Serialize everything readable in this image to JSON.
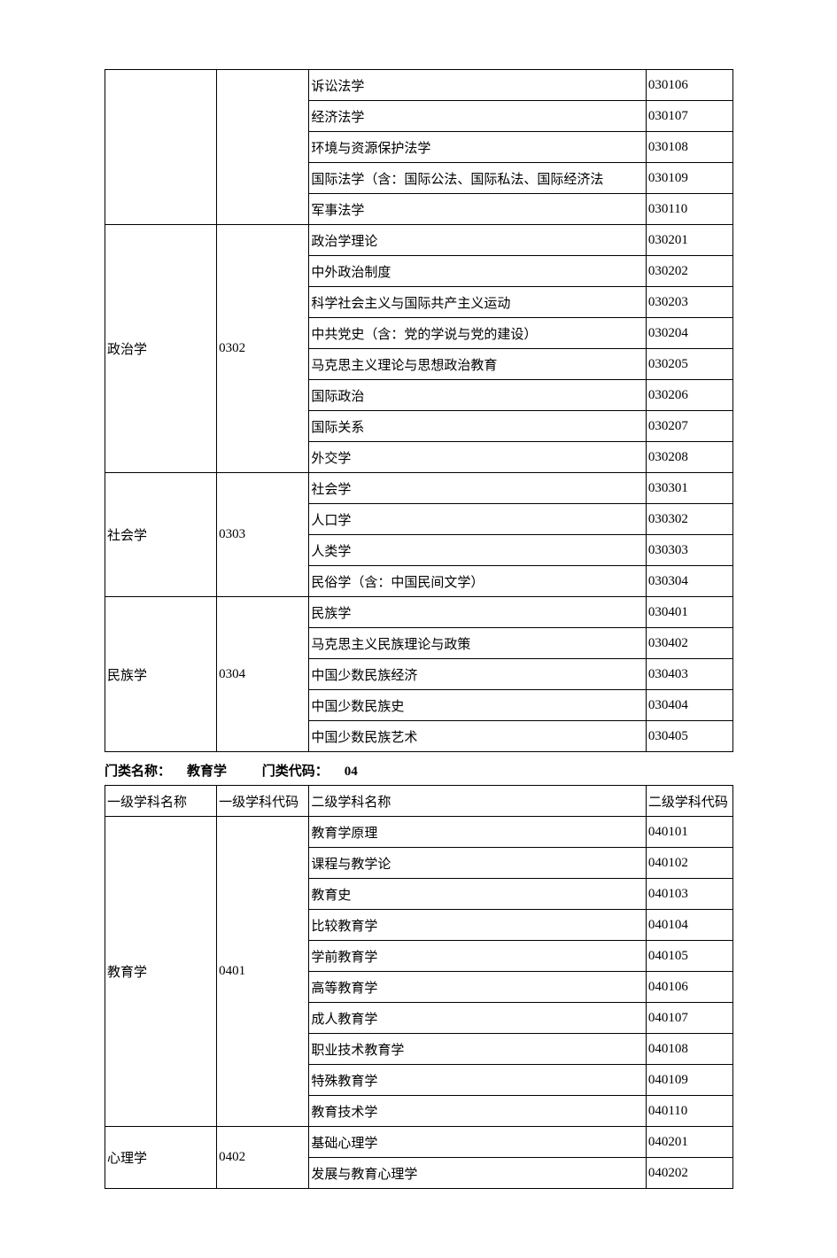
{
  "section_label_name": "门类名称：",
  "section_label_code": "门类代码：",
  "headers": {
    "l1_name": "一级学科名称",
    "l1_code": "一级学科代码",
    "l2_name": "二级学科名称",
    "l2_code": "二级学科代码"
  },
  "top_partial": {
    "rows": [
      {
        "l2_name": "诉讼法学",
        "l2_code": "030106"
      },
      {
        "l2_name": "经济法学",
        "l2_code": "030107"
      },
      {
        "l2_name": "环境与资源保护法学",
        "l2_code": "030108"
      },
      {
        "l2_name": "国际法学（含：国际公法、国际私法、国际经济法",
        "l2_code": "030109"
      },
      {
        "l2_name": "军事法学",
        "l2_code": "030110"
      }
    ]
  },
  "groups03": [
    {
      "l1_name": "政治学",
      "l1_code": "0302",
      "rows": [
        {
          "l2_name": "政治学理论",
          "l2_code": "030201"
        },
        {
          "l2_name": "中外政治制度",
          "l2_code": "030202"
        },
        {
          "l2_name": "科学社会主义与国际共产主义运动",
          "l2_code": "030203"
        },
        {
          "l2_name": "中共党史（含：党的学说与党的建设）",
          "l2_code": "030204"
        },
        {
          "l2_name": "马克思主义理论与思想政治教育",
          "l2_code": "030205"
        },
        {
          "l2_name": "国际政治",
          "l2_code": "030206"
        },
        {
          "l2_name": "国际关系",
          "l2_code": "030207"
        },
        {
          "l2_name": "外交学",
          "l2_code": "030208"
        }
      ]
    },
    {
      "l1_name": "社会学",
      "l1_code": "0303",
      "rows": [
        {
          "l2_name": "社会学",
          "l2_code": "030301"
        },
        {
          "l2_name": "人口学",
          "l2_code": "030302"
        },
        {
          "l2_name": "人类学",
          "l2_code": "030303"
        },
        {
          "l2_name": "民俗学（含：中国民间文学）",
          "l2_code": "030304"
        }
      ]
    },
    {
      "l1_name": "民族学",
      "l1_code": "0304",
      "rows": [
        {
          "l2_name": "民族学",
          "l2_code": "030401"
        },
        {
          "l2_name": "马克思主义民族理论与政策",
          "l2_code": "030402"
        },
        {
          "l2_name": "中国少数民族经济",
          "l2_code": "030403"
        },
        {
          "l2_name": "中国少数民族史",
          "l2_code": "030404"
        },
        {
          "l2_name": "中国少数民族艺术",
          "l2_code": "030405"
        }
      ]
    }
  ],
  "section04": {
    "name": "教育学",
    "code": "04"
  },
  "groups04": [
    {
      "l1_name": "教育学",
      "l1_code": "0401",
      "rows": [
        {
          "l2_name": "教育学原理",
          "l2_code": "040101"
        },
        {
          "l2_name": "课程与教学论",
          "l2_code": "040102"
        },
        {
          "l2_name": "教育史",
          "l2_code": "040103"
        },
        {
          "l2_name": "比较教育学",
          "l2_code": "040104"
        },
        {
          "l2_name": "学前教育学",
          "l2_code": "040105"
        },
        {
          "l2_name": "高等教育学",
          "l2_code": "040106"
        },
        {
          "l2_name": "成人教育学",
          "l2_code": "040107"
        },
        {
          "l2_name": "职业技术教育学",
          "l2_code": "040108"
        },
        {
          "l2_name": "特殊教育学",
          "l2_code": "040109"
        },
        {
          "l2_name": "教育技术学",
          "l2_code": "040110"
        }
      ]
    },
    {
      "l1_name": "心理学",
      "l1_code": "0402",
      "rows": [
        {
          "l2_name": "基础心理学",
          "l2_code": "040201"
        },
        {
          "l2_name": "发展与教育心理学",
          "l2_code": "040202"
        }
      ]
    }
  ]
}
